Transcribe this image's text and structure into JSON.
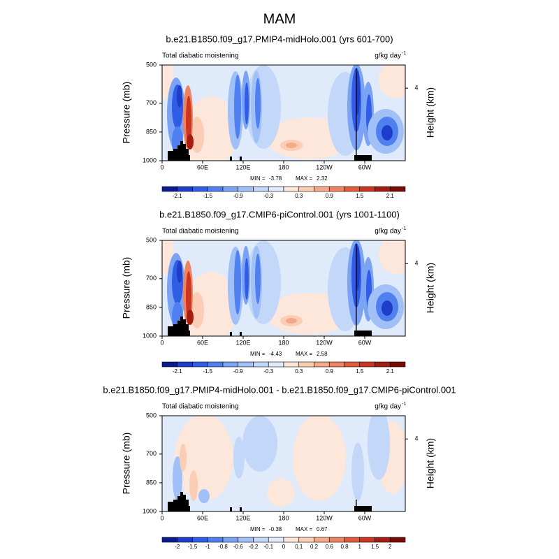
{
  "title": "MAM",
  "chart_data": [
    {
      "type": "contour",
      "title": "b.e21.B1850.f09_g17.PMIP4-midHolo.001 (yrs 601-700)",
      "left_label": "Total diabatic moistening",
      "units": "g/kg day",
      "units_exponent": "-1",
      "ylabel": "Pressure (mb)",
      "y2label": "Height (km)",
      "xlim": [
        0,
        360
      ],
      "xticks": [
        0,
        {
          "value": 60,
          "label": "60E"
        },
        {
          "value": 120,
          "label": "120E"
        },
        180,
        {
          "value": 240,
          "label": "120W"
        },
        {
          "value": 300,
          "label": "60W"
        }
      ],
      "ylim": [
        1000,
        500
      ],
      "yticks": [
        500,
        700,
        850,
        1000
      ],
      "y2ticks": [
        4
      ],
      "min_label": "MIN =",
      "min": -3.78,
      "max_label": "MAX =",
      "max": 2.32,
      "colorbar": {
        "levels": [
          -2.1,
          null,
          -1.5,
          null,
          -0.9,
          null,
          -0.3,
          null,
          0.3,
          null,
          0.9,
          null,
          1.5,
          null,
          2.1
        ],
        "colors": [
          "#0b1b90",
          "#1e3dc8",
          "#2f5de6",
          "#5080f0",
          "#7aa3f5",
          "#a1c0f7",
          "#c3d8f9",
          "#dfeafb",
          "#fde6da",
          "#fbcdb5",
          "#f6a88a",
          "#ef8260",
          "#e25a3c",
          "#cc3520",
          "#a51c10",
          "#7a0a06"
        ]
      }
    },
    {
      "type": "contour",
      "title": "b.e21.B1850.f09_g17.CMIP6-piControl.001 (yrs 1001-1100)",
      "left_label": "Total diabatic moistening",
      "units": "g/kg day",
      "units_exponent": "-1",
      "ylabel": "Pressure (mb)",
      "y2label": "Height (km)",
      "xlim": [
        0,
        360
      ],
      "xticks": [
        0,
        {
          "value": 60,
          "label": "60E"
        },
        {
          "value": 120,
          "label": "120E"
        },
        180,
        {
          "value": 240,
          "label": "120W"
        },
        {
          "value": 300,
          "label": "60W"
        }
      ],
      "ylim": [
        1000,
        500
      ],
      "yticks": [
        500,
        700,
        850,
        1000
      ],
      "y2ticks": [
        4
      ],
      "min_label": "MIN =",
      "min": -4.43,
      "max_label": "MAX =",
      "max": 2.58,
      "colorbar": {
        "levels": [
          -2.1,
          null,
          -1.5,
          null,
          -0.9,
          null,
          -0.3,
          null,
          0.3,
          null,
          0.9,
          null,
          1.5,
          null,
          2.1
        ],
        "colors": [
          "#0b1b90",
          "#1e3dc8",
          "#2f5de6",
          "#5080f0",
          "#7aa3f5",
          "#a1c0f7",
          "#c3d8f9",
          "#dfeafb",
          "#fde6da",
          "#fbcdb5",
          "#f6a88a",
          "#ef8260",
          "#e25a3c",
          "#cc3520",
          "#a51c10",
          "#7a0a06"
        ]
      }
    },
    {
      "type": "contour",
      "title": "b.e21.B1850.f09_g17.PMIP4-midHolo.001 - b.e21.B1850.f09_g17.CMIP6-piControl.001",
      "left_label": "Total diabatic moistening",
      "units": "g/kg day",
      "units_exponent": "-1",
      "ylabel": "Pressure (mb)",
      "y2label": "Height (km)",
      "xlim": [
        0,
        360
      ],
      "xticks": [
        0,
        {
          "value": 60,
          "label": "60E"
        },
        {
          "value": 120,
          "label": "120E"
        },
        180,
        {
          "value": 240,
          "label": "120W"
        },
        {
          "value": 300,
          "label": "60W"
        }
      ],
      "ylim": [
        1000,
        500
      ],
      "yticks": [
        500,
        700,
        850,
        1000
      ],
      "y2ticks": [
        4
      ],
      "min_label": "MIN =",
      "min": -0.38,
      "max_label": "MAX =",
      "max": 0.67,
      "colorbar": {
        "levels": [
          -2,
          -1.5,
          -1,
          -0.8,
          -0.6,
          -0.2,
          -0.1,
          0,
          0.1,
          0.2,
          0.6,
          0.8,
          1,
          1.5,
          2
        ],
        "colors": [
          "#0b1b90",
          "#1e3dc8",
          "#2f5de6",
          "#5080f0",
          "#7aa3f5",
          "#a1c0f7",
          "#c3d8f9",
          "#dfeafb",
          "#fde6da",
          "#fbcdb5",
          "#f6a88a",
          "#ef8260",
          "#e25a3c",
          "#cc3520",
          "#a51c10",
          "#7a0a06"
        ]
      }
    }
  ]
}
